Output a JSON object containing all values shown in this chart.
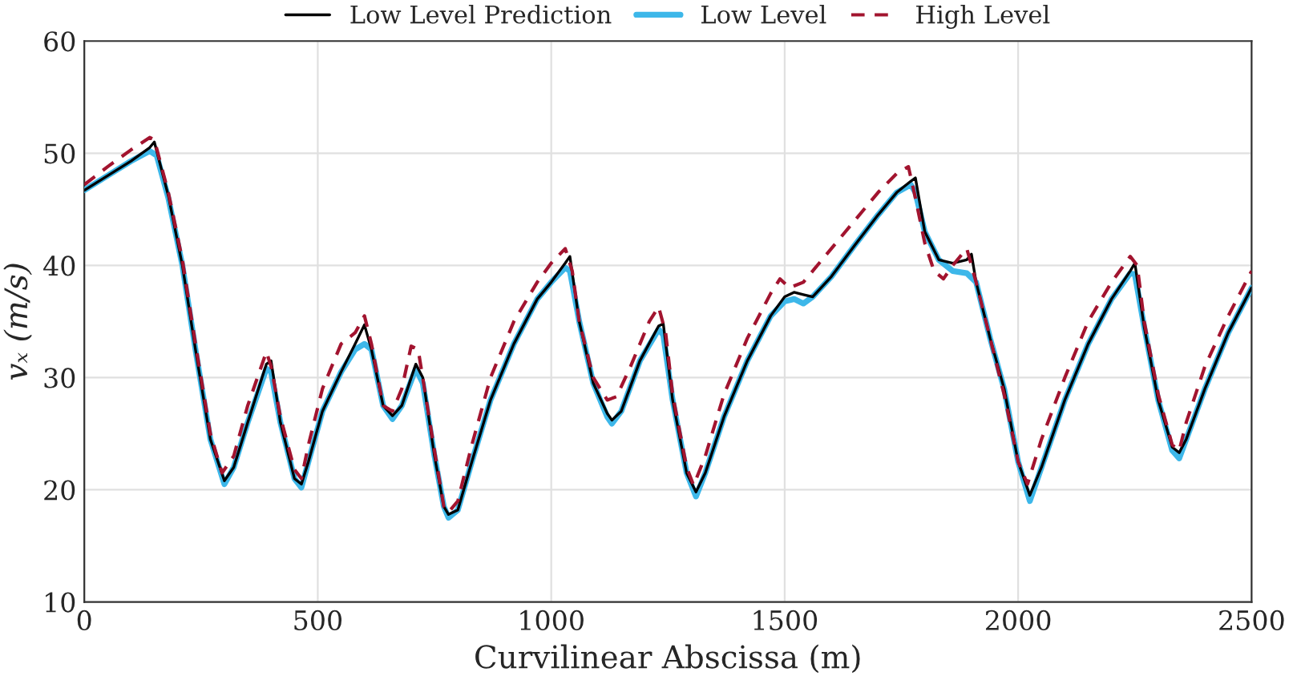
{
  "chart_data": {
    "type": "line",
    "xlabel": "Curvilinear Abscissa (m)",
    "ylabel": "vₓ (m/s)",
    "xlim": [
      0,
      2500
    ],
    "ylim": [
      10,
      60
    ],
    "xticks": [
      0,
      500,
      1000,
      1500,
      2000,
      2500
    ],
    "yticks": [
      10,
      20,
      30,
      40,
      50,
      60
    ],
    "grid": true,
    "legend": "top",
    "marker": "none",
    "series": [
      {
        "name": "Low Level Prediction",
        "color": "#000000",
        "line_style": "solid",
        "x": [
          0,
          50,
          100,
          140,
          150,
          180,
          210,
          240,
          270,
          300,
          320,
          350,
          390,
          400,
          420,
          450,
          465,
          480,
          510,
          550,
          580,
          600,
          615,
          640,
          660,
          680,
          710,
          725,
          750,
          770,
          780,
          800,
          830,
          870,
          920,
          970,
          1000,
          1030,
          1040,
          1060,
          1090,
          1120,
          1130,
          1150,
          1190,
          1230,
          1240,
          1260,
          1290,
          1310,
          1330,
          1370,
          1420,
          1470,
          1500,
          1520,
          1540,
          1560,
          1600,
          1650,
          1700,
          1740,
          1770,
          1780,
          1800,
          1830,
          1860,
          1890,
          1900,
          1910,
          1940,
          1970,
          2000,
          2025,
          2050,
          2100,
          2150,
          2200,
          2240,
          2250,
          2270,
          2300,
          2330,
          2345,
          2360,
          2400,
          2450,
          2500
        ],
        "values": [
          46.7,
          48.0,
          49.3,
          50.5,
          51.0,
          46.2,
          40,
          32,
          24.5,
          20.8,
          22,
          26,
          31.2,
          31.5,
          26,
          21,
          20.5,
          22.5,
          27,
          30.5,
          33,
          34.7,
          32.5,
          27.5,
          26.6,
          27.5,
          31.2,
          30,
          23,
          18.5,
          17.8,
          18.2,
          22.5,
          28,
          33,
          37,
          38.5,
          40.2,
          40.8,
          35,
          29.5,
          26.8,
          26.2,
          27,
          31.5,
          34.6,
          34.8,
          28,
          21.5,
          19.8,
          21.5,
          26.5,
          31.5,
          35.5,
          37.2,
          37.6,
          37.4,
          37.2,
          39,
          41.8,
          44.5,
          46.5,
          47.5,
          47.8,
          43,
          40.5,
          40.2,
          40.5,
          41,
          38.5,
          33.5,
          29,
          22.5,
          19.5,
          22,
          28,
          33,
          37,
          39.5,
          40.2,
          34.5,
          28,
          23.8,
          23.3,
          24.5,
          29,
          34,
          38
        ]
      },
      {
        "name": "Low Level",
        "color": "#3db7e9",
        "line_style": "solid",
        "x": [
          0,
          50,
          100,
          140,
          155,
          180,
          210,
          240,
          270,
          300,
          320,
          350,
          390,
          400,
          420,
          450,
          465,
          480,
          510,
          550,
          580,
          600,
          615,
          640,
          660,
          680,
          710,
          725,
          750,
          770,
          780,
          800,
          830,
          870,
          920,
          970,
          1000,
          1030,
          1040,
          1060,
          1090,
          1120,
          1130,
          1150,
          1190,
          1230,
          1240,
          1260,
          1290,
          1310,
          1330,
          1370,
          1420,
          1470,
          1500,
          1520,
          1540,
          1560,
          1600,
          1650,
          1700,
          1740,
          1770,
          1780,
          1800,
          1830,
          1860,
          1890,
          1910,
          1940,
          1970,
          2000,
          2025,
          2050,
          2100,
          2150,
          2200,
          2240,
          2250,
          2270,
          2300,
          2330,
          2345,
          2360,
          2400,
          2450,
          2500
        ],
        "values": [
          46.7,
          48.0,
          49.3,
          50.2,
          49.8,
          46,
          40,
          32,
          24.5,
          20.5,
          22,
          26,
          30.8,
          30.5,
          26,
          21,
          20.2,
          22.5,
          27,
          30.5,
          32.5,
          33,
          32.5,
          27.5,
          26.3,
          27.5,
          30.8,
          29.5,
          23,
          18.5,
          17.5,
          18.2,
          22.5,
          28,
          33,
          37,
          38.5,
          39.8,
          39.5,
          35,
          29.5,
          26.5,
          25.9,
          27,
          31.5,
          34.3,
          33.8,
          28,
          21.5,
          19.4,
          21.5,
          26.5,
          31.5,
          35.5,
          36.8,
          37,
          36.6,
          37.2,
          39,
          41.8,
          44.5,
          46.5,
          47.2,
          46.5,
          43,
          40.5,
          39.5,
          39.3,
          38.5,
          33.5,
          29,
          22.5,
          19.0,
          22,
          28,
          33,
          37,
          39.3,
          39.2,
          34.5,
          28,
          23.5,
          22.8,
          24.5,
          29,
          34,
          38
        ]
      },
      {
        "name": "High Level",
        "color": "#a2142f",
        "line_style": "dashed",
        "x": [
          0,
          50,
          100,
          140,
          150,
          180,
          210,
          240,
          270,
          295,
          320,
          350,
          390,
          400,
          420,
          450,
          465,
          480,
          510,
          550,
          580,
          600,
          615,
          640,
          660,
          680,
          700,
          715,
          750,
          770,
          780,
          800,
          830,
          870,
          920,
          970,
          1000,
          1030,
          1045,
          1060,
          1090,
          1120,
          1140,
          1170,
          1210,
          1230,
          1245,
          1260,
          1290,
          1305,
          1330,
          1370,
          1420,
          1470,
          1490,
          1510,
          1540,
          1580,
          1650,
          1700,
          1740,
          1765,
          1780,
          1800,
          1820,
          1840,
          1860,
          1890,
          1910,
          1940,
          1970,
          2000,
          2020,
          2050,
          2100,
          2150,
          2200,
          2240,
          2255,
          2270,
          2300,
          2330,
          2345,
          2360,
          2400,
          2450,
          2500
        ],
        "values": [
          47.2,
          48.8,
          50.3,
          51.4,
          51.2,
          46.5,
          40.5,
          32.5,
          25,
          21.5,
          23,
          27.5,
          32.3,
          31,
          26.5,
          21.8,
          21,
          24,
          29,
          33,
          34,
          35.5,
          33,
          27.5,
          27,
          29,
          32.8,
          32.5,
          23.5,
          18.5,
          18,
          19,
          24,
          30,
          35,
          38.5,
          40.2,
          41.5,
          39.5,
          35,
          30,
          28,
          28.3,
          31,
          35,
          36.3,
          34,
          28.5,
          22,
          20.4,
          23,
          28.5,
          33.5,
          37.5,
          38.8,
          38,
          38.5,
          40.5,
          44,
          46.5,
          48.2,
          48.8,
          46,
          42,
          39.5,
          38.8,
          40,
          41.5,
          38.5,
          33.5,
          28.5,
          22.5,
          20.5,
          24.5,
          30,
          35,
          38.5,
          40.8,
          40,
          35,
          28.5,
          24,
          23.5,
          26,
          31,
          35.5,
          39.5
        ]
      }
    ]
  }
}
